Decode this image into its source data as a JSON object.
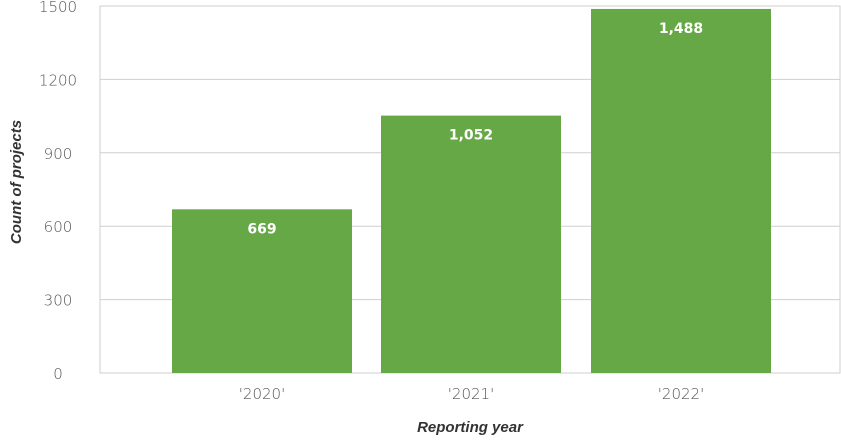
{
  "chart_data": {
    "type": "bar",
    "categories": [
      "'2020'",
      "'2021'",
      "'2022'"
    ],
    "values": [
      669,
      1052,
      1488
    ],
    "value_labels": [
      "669",
      "1,052",
      "1,488"
    ],
    "xlabel": "Reporting year",
    "ylabel": "Count of projects",
    "ylim": [
      0,
      1500
    ],
    "yticks": [
      0,
      300,
      600,
      900,
      1200,
      1500
    ],
    "grid": true,
    "bar_color": "#66a845",
    "label_color": "#ffffff"
  }
}
